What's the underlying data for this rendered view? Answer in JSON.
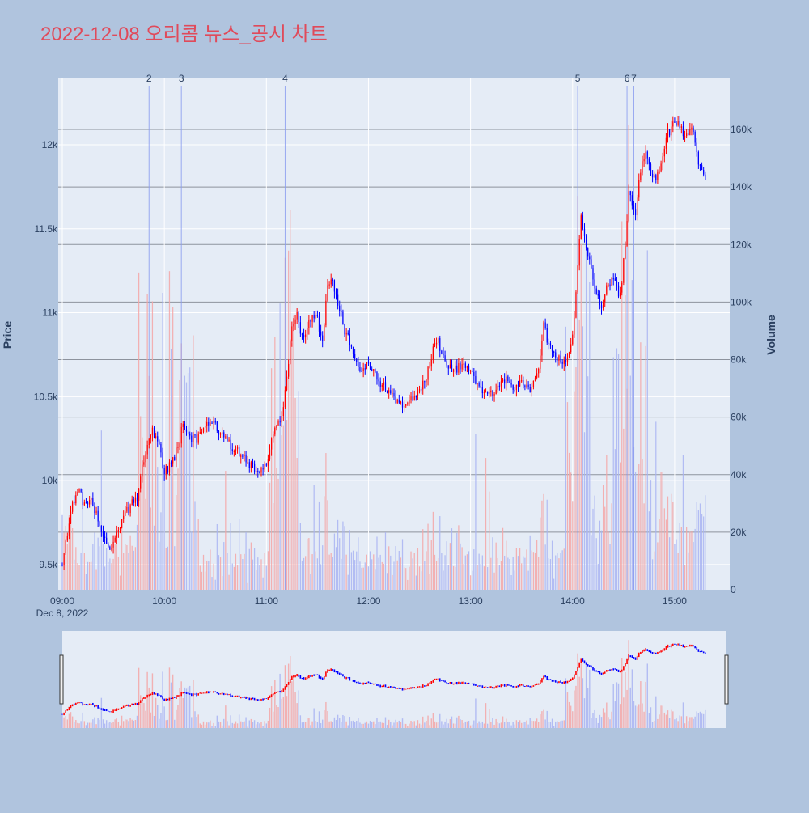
{
  "chart_data": {
    "type": "candlestick",
    "title": "2022-12-08 오리콤 뉴스_공시 차트",
    "colors": {
      "page_background": "#b0c4de",
      "plot_background": "#e5ecf6",
      "title": "#e04a5a",
      "increasing": "#ff0000",
      "decreasing": "#0000ff",
      "volume_up": "#f4a6a6",
      "volume_down": "#a9b4f2",
      "event_line": "#8a9cf0",
      "h_gridline": "#8d939d",
      "axis_text": "#2a3f5f"
    },
    "x_axis": {
      "start": "09:00",
      "end": "15:30",
      "tick_labels": [
        "09:00",
        "10:00",
        "11:00",
        "12:00",
        "13:00",
        "14:00",
        "15:00"
      ],
      "date_label": "Dec 8, 2022"
    },
    "y_axis_price": {
      "label": "Price",
      "range": [
        9350,
        12400
      ],
      "ticks": [
        9500,
        10000,
        10500,
        11000,
        11500,
        12000
      ],
      "tick_labels": [
        "9.5k",
        "10k",
        "10.5k",
        "11k",
        "11.5k",
        "12k"
      ]
    },
    "y_axis_volume": {
      "label": "Volume",
      "range": [
        0,
        178000
      ],
      "ticks": [
        0,
        20000,
        40000,
        60000,
        80000,
        100000,
        120000,
        140000,
        160000
      ],
      "tick_labels": [
        "0",
        "20k",
        "40k",
        "60k",
        "80k",
        "100k",
        "120k",
        "140k",
        "160k"
      ]
    },
    "events": [
      {
        "label": "2",
        "time": "09:51"
      },
      {
        "label": "3",
        "time": "10:10"
      },
      {
        "label": "4",
        "time": "11:11"
      },
      {
        "label": "5",
        "time": "14:03"
      },
      {
        "label": "6",
        "time": "14:32"
      },
      {
        "label": "7",
        "time": "14:36"
      }
    ],
    "price_path": [
      [
        "09:00",
        9500
      ],
      [
        "09:03",
        9700
      ],
      [
        "09:06",
        9850
      ],
      [
        "09:10",
        9950
      ],
      [
        "09:13",
        9850
      ],
      [
        "09:17",
        9900
      ],
      [
        "09:20",
        9800
      ],
      [
        "09:24",
        9650
      ],
      [
        "09:28",
        9600
      ],
      [
        "09:32",
        9700
      ],
      [
        "09:36",
        9780
      ],
      [
        "09:40",
        9850
      ],
      [
        "09:44",
        9900
      ],
      [
        "09:47",
        10100
      ],
      [
        "09:50",
        10200
      ],
      [
        "09:53",
        10300
      ],
      [
        "09:57",
        10200
      ],
      [
        "10:00",
        10050
      ],
      [
        "10:04",
        10100
      ],
      [
        "10:08",
        10200
      ],
      [
        "10:11",
        10350
      ],
      [
        "10:15",
        10250
      ],
      [
        "10:19",
        10250
      ],
      [
        "10:24",
        10350
      ],
      [
        "10:28",
        10350
      ],
      [
        "10:32",
        10300
      ],
      [
        "10:36",
        10250
      ],
      [
        "10:40",
        10200
      ],
      [
        "10:45",
        10150
      ],
      [
        "10:50",
        10100
      ],
      [
        "10:55",
        10050
      ],
      [
        "11:00",
        10100
      ],
      [
        "11:05",
        10300
      ],
      [
        "11:09",
        10400
      ],
      [
        "11:12",
        10600
      ],
      [
        "11:15",
        10900
      ],
      [
        "11:18",
        11000
      ],
      [
        "11:21",
        10850
      ],
      [
        "11:24",
        10900
      ],
      [
        "11:27",
        11000
      ],
      [
        "11:30",
        10950
      ],
      [
        "11:33",
        10850
      ],
      [
        "11:36",
        11150
      ],
      [
        "11:39",
        11200
      ],
      [
        "11:42",
        11050
      ],
      [
        "11:46",
        10900
      ],
      [
        "11:50",
        10800
      ],
      [
        "11:55",
        10650
      ],
      [
        "12:00",
        10700
      ],
      [
        "12:05",
        10600
      ],
      [
        "12:10",
        10550
      ],
      [
        "12:15",
        10500
      ],
      [
        "12:20",
        10450
      ],
      [
        "12:25",
        10500
      ],
      [
        "12:30",
        10550
      ],
      [
        "12:35",
        10650
      ],
      [
        "12:40",
        10850
      ],
      [
        "12:45",
        10700
      ],
      [
        "12:50",
        10650
      ],
      [
        "12:55",
        10700
      ],
      [
        "13:00",
        10650
      ],
      [
        "13:05",
        10550
      ],
      [
        "13:10",
        10500
      ],
      [
        "13:15",
        10550
      ],
      [
        "13:20",
        10600
      ],
      [
        "13:25",
        10550
      ],
      [
        "13:30",
        10600
      ],
      [
        "13:35",
        10550
      ],
      [
        "13:40",
        10650
      ],
      [
        "13:43",
        10950
      ],
      [
        "13:46",
        10800
      ],
      [
        "13:50",
        10750
      ],
      [
        "13:55",
        10700
      ],
      [
        "14:00",
        10850
      ],
      [
        "14:03",
        11300
      ],
      [
        "14:05",
        11550
      ],
      [
        "14:08",
        11400
      ],
      [
        "14:11",
        11250
      ],
      [
        "14:14",
        11100
      ],
      [
        "14:17",
        11050
      ],
      [
        "14:20",
        11150
      ],
      [
        "14:24",
        11200
      ],
      [
        "14:28",
        11100
      ],
      [
        "14:31",
        11400
      ],
      [
        "14:33",
        11700
      ],
      [
        "14:37",
        11600
      ],
      [
        "14:40",
        11850
      ],
      [
        "14:43",
        11950
      ],
      [
        "14:46",
        11850
      ],
      [
        "14:49",
        11800
      ],
      [
        "14:52",
        11900
      ],
      [
        "14:55",
        12050
      ],
      [
        "14:58",
        12100
      ],
      [
        "15:02",
        12150
      ],
      [
        "15:06",
        12050
      ],
      [
        "15:10",
        12100
      ],
      [
        "15:15",
        11850
      ],
      [
        "15:18",
        11800
      ]
    ]
  }
}
